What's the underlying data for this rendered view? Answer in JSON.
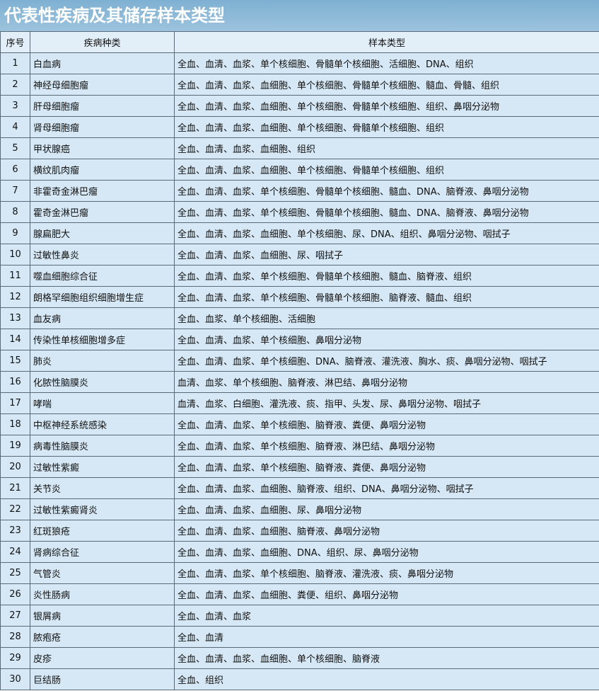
{
  "header": {
    "title": "代表性疾病及其储存样本类型"
  },
  "table": {
    "columns": [
      "序号",
      "疾病种类",
      "样本类型"
    ],
    "rows": [
      [
        "1",
        "白血病",
        "全血、血清、血浆、单个核细胞、骨髓单个核细胞、活细胞、DNA、组织"
      ],
      [
        "2",
        "神经母细胞瘤",
        "全血、血清、血浆、血细胞、单个核细胞、骨髓单个核细胞、髓血、骨髓、组织"
      ],
      [
        "3",
        "肝母细胞瘤",
        "全血、血清、血浆、血细胞、单个核细胞、骨髓单个核细胞、组织、鼻咽分泌物"
      ],
      [
        "4",
        "肾母细胞瘤",
        "全血、血清、血浆、血细胞、单个核细胞、骨髓单个核细胞、组织"
      ],
      [
        "5",
        "甲状腺癌",
        "全血、血清、血浆、血细胞、组织"
      ],
      [
        "6",
        "横纹肌肉瘤",
        "全血、血清、血浆、血细胞、单个核细胞、骨髓单个核细胞、组织"
      ],
      [
        "7",
        "非霍奇金淋巴瘤",
        "全血、血清、血浆、单个核细胞、骨髓单个核细胞、髓血、DNA、脑脊液、鼻咽分泌物"
      ],
      [
        "8",
        "霍奇金淋巴瘤",
        "全血、血清、血浆、单个核细胞、骨髓单个核细胞、髓血、DNA、脑脊液、鼻咽分泌物"
      ],
      [
        "9",
        "腺扁肥大",
        "全血、血清、血浆、血细胞、单个核细胞、尿、DNA、组织、鼻咽分泌物、咽拭子"
      ],
      [
        "10",
        "过敏性鼻炎",
        "全血、血清、血浆、血细胞、尿、咽拭子"
      ],
      [
        "11",
        "噬血细胞综合征",
        "全血、血清、血浆、单个核细胞、骨髓单个核细胞、髓血、脑脊液、组织"
      ],
      [
        "12",
        "朗格罕细胞组织细胞增生症",
        "全血、血清、血浆、单个核细胞、骨髓单个核细胞、脑脊液、髓血、组织"
      ],
      [
        "13",
        "血友病",
        "全血、血浆、单个核细胞、活细胞"
      ],
      [
        "14",
        "传染性单核细胞增多症",
        "全血、血清、血浆、单个核细胞、鼻咽分泌物"
      ],
      [
        "15",
        "肺炎",
        "全血、血清、血浆、单个核细胞、DNA、脑脊液、灌洗液、胸水、痰、鼻咽分泌物、咽拭子"
      ],
      [
        "16",
        "化脓性脑膜炎",
        "血清、血浆、单个核细胞、脑脊液、淋巴结、鼻咽分泌物"
      ],
      [
        "17",
        "哮喘",
        "血清、血浆、白细胞、灌洗液、痰、指甲、头发、尿、鼻咽分泌物、咽拭子"
      ],
      [
        "18",
        "中枢神经系统感染",
        "全血、血清、血浆、单个核细胞、脑脊液、粪便、鼻咽分泌物"
      ],
      [
        "19",
        "病毒性脑膜炎",
        "全血、血清、血浆、单个核细胞、脑脊液、淋巴结、鼻咽分泌物"
      ],
      [
        "20",
        "过敏性紫癜",
        "全血、血清、血浆、单个核细胞、脑脊液、粪便、鼻咽分泌物"
      ],
      [
        "21",
        "关节炎",
        "全血、血清、血浆、血细胞、脑脊液、组织、DNA、鼻咽分泌物、咽拭子"
      ],
      [
        "22",
        "过敏性紫癜肾炎",
        "全血、血清、血浆、血细胞、尿、鼻咽分泌物"
      ],
      [
        "23",
        "红斑狼疮",
        "全血、血清、血浆、血细胞、脑脊液、鼻咽分泌物"
      ],
      [
        "24",
        "肾病综合征",
        "全血、血清、血浆、血细胞、DNA、组织、尿、鼻咽分泌物"
      ],
      [
        "25",
        "气管炎",
        "全血、血清、血浆、单个核细胞、脑脊液、灌洗液、痰、鼻咽分泌物"
      ],
      [
        "26",
        "炎性肠病",
        "全血、血清、血浆、血细胞、粪便、组织、鼻咽分泌物"
      ],
      [
        "27",
        "银屑病",
        "全血、血清、血浆"
      ],
      [
        "28",
        "脓疱疮",
        "全血、血清"
      ],
      [
        "29",
        "皮疹",
        "全血、血清、血浆、血细胞、单个核细胞、脑脊液"
      ],
      [
        "30",
        "巨结肠",
        "全血、组织"
      ]
    ]
  }
}
